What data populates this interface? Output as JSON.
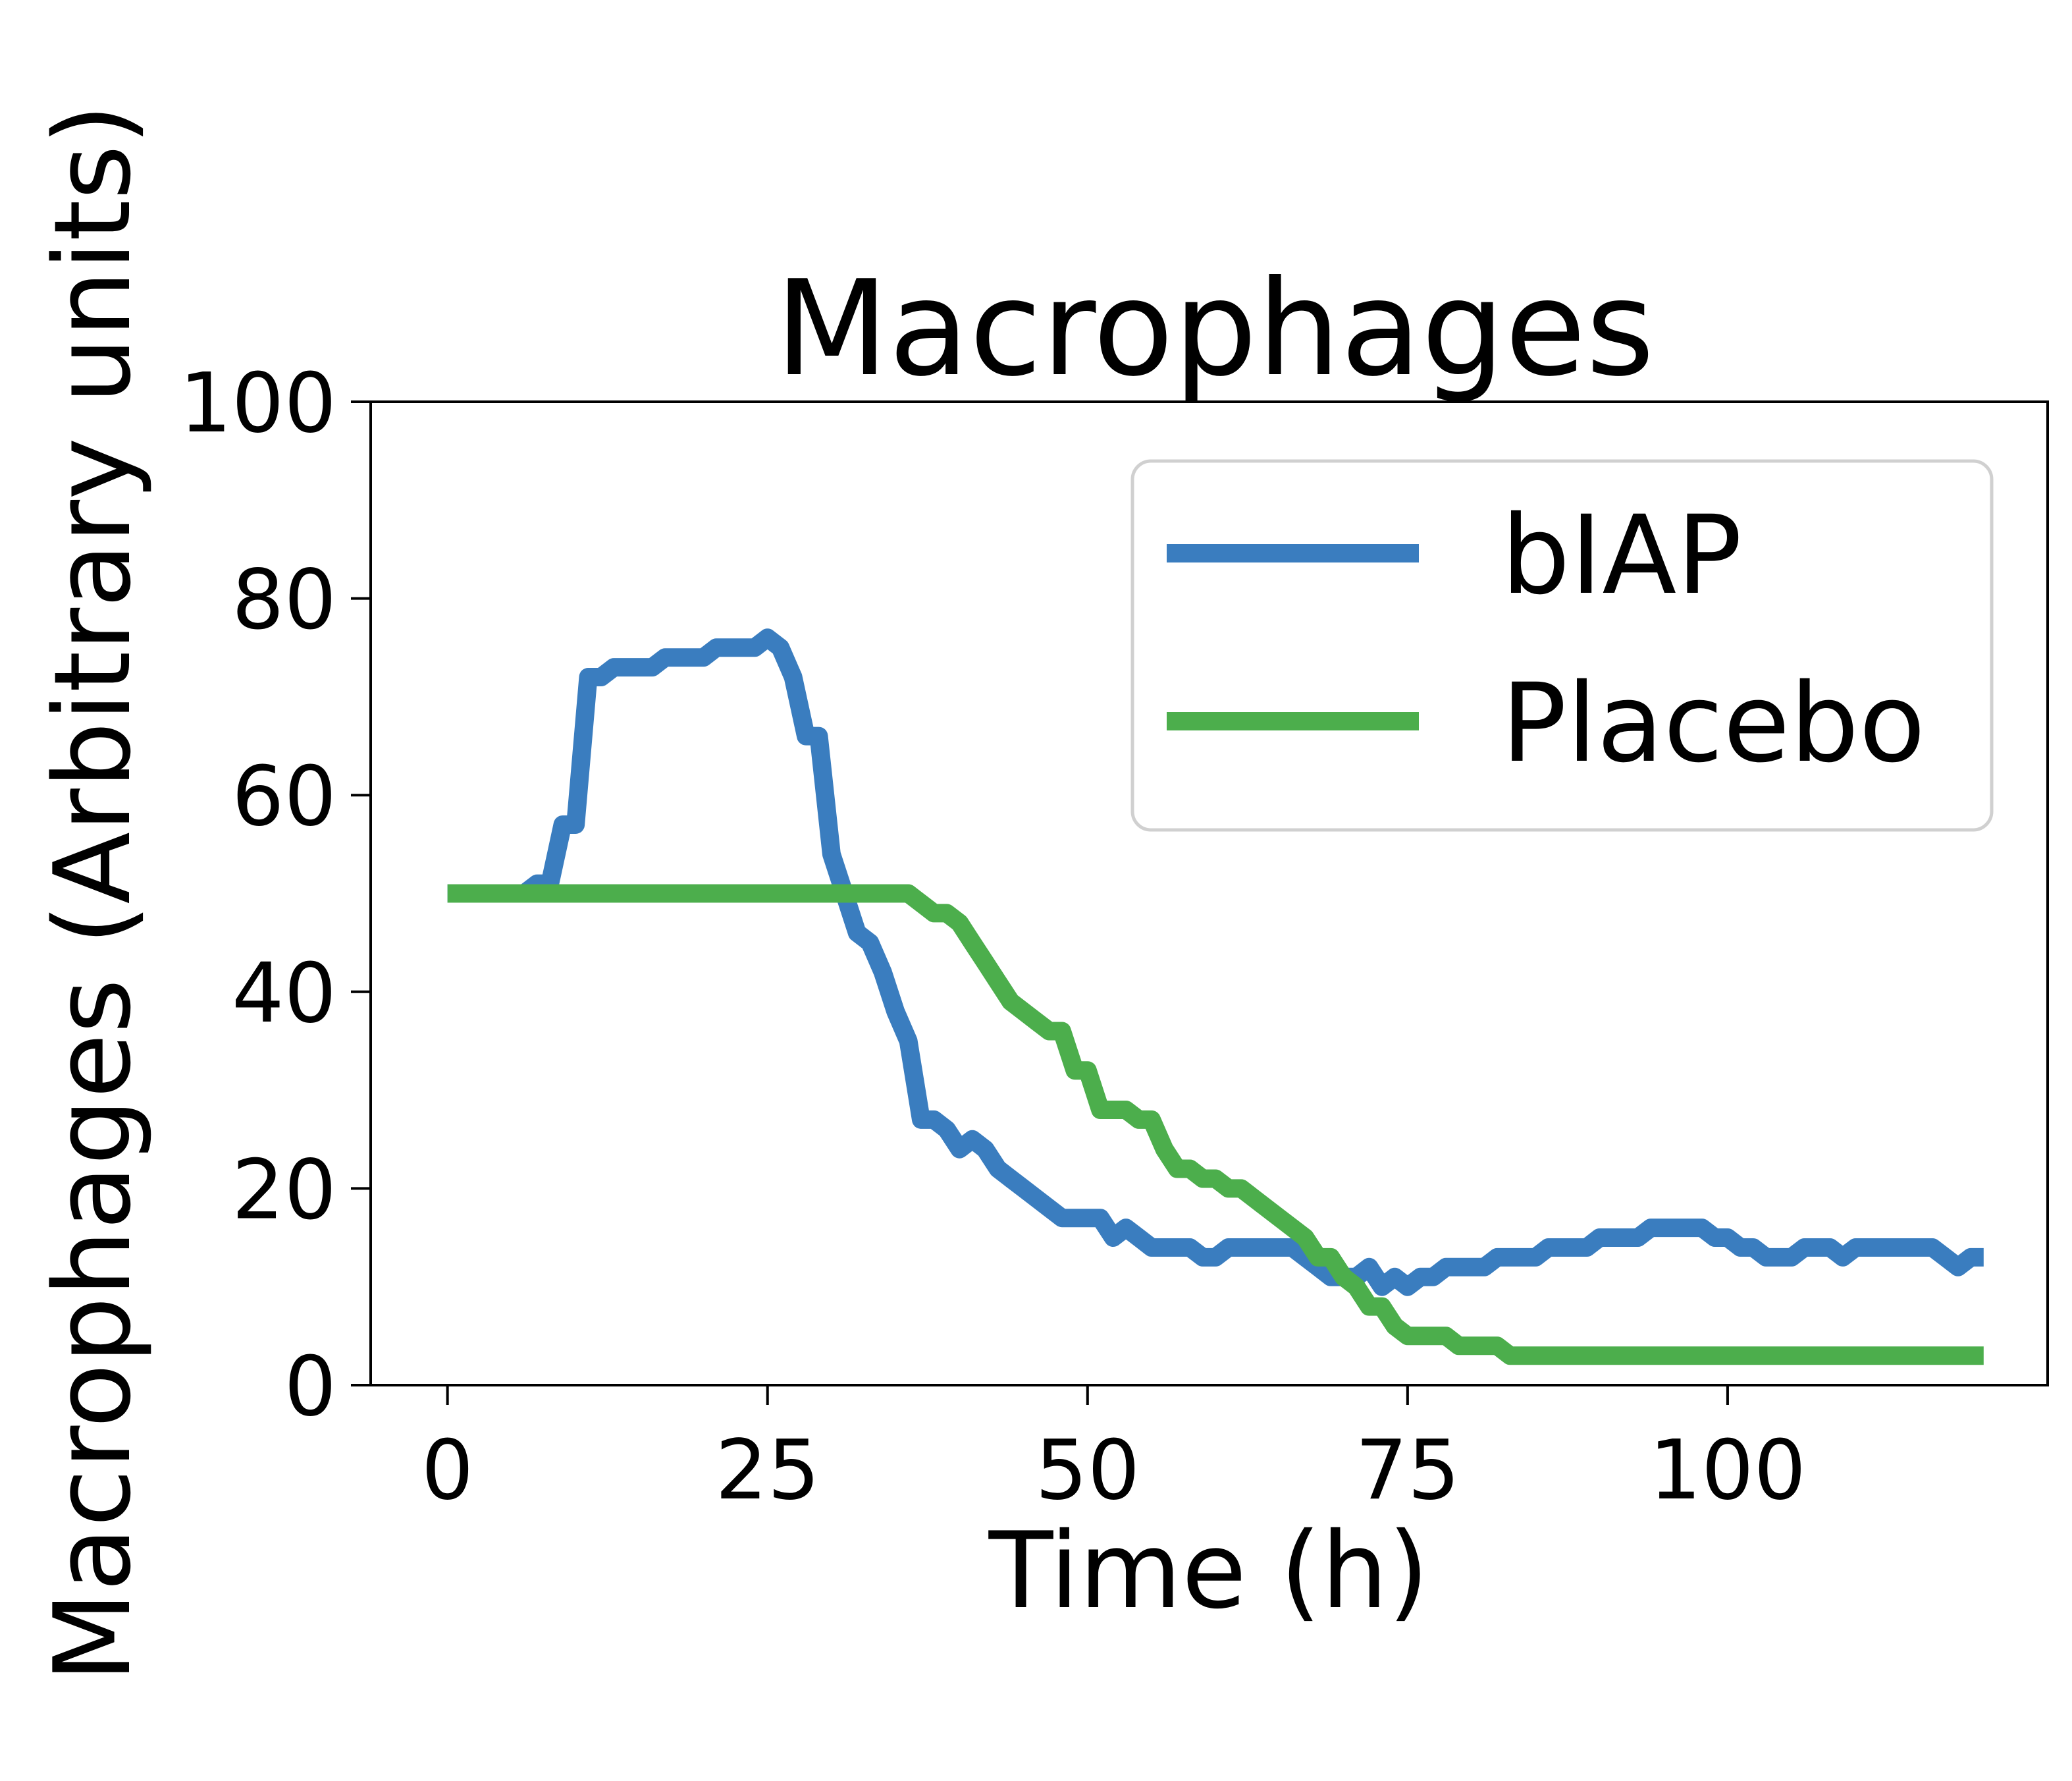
{
  "chart_data": {
    "type": "line",
    "title": "Macrophages",
    "xlabel": "Time (h)",
    "ylabel": "Macrophages (Arbitrary units)",
    "xlim": [
      -6,
      125
    ],
    "ylim": [
      0,
      100
    ],
    "xticks": [
      0,
      25,
      50,
      75,
      100
    ],
    "yticks": [
      0,
      20,
      40,
      60,
      80,
      100
    ],
    "grid": false,
    "legend_position": "top-right",
    "series": [
      {
        "name": "bIAP",
        "color": "#3a7dbf",
        "x": [
          0,
          6,
          7,
          8,
          9,
          10,
          11,
          12,
          13,
          14,
          15,
          16,
          17,
          18,
          19,
          20,
          21,
          22,
          23,
          24,
          25,
          26,
          27,
          28,
          29,
          30,
          31,
          32,
          33,
          34,
          35,
          36,
          37,
          38,
          39,
          40,
          41,
          42,
          43,
          44,
          45,
          46,
          47,
          48,
          49,
          50,
          51,
          52,
          53,
          54,
          55,
          56,
          57,
          58,
          59,
          60,
          61,
          62,
          63,
          64,
          65,
          66,
          67,
          68,
          69,
          70,
          71,
          72,
          73,
          74,
          75,
          76,
          77,
          78,
          79,
          80,
          81,
          82,
          83,
          84,
          85,
          86,
          87,
          88,
          89,
          90,
          91,
          92,
          93,
          94,
          95,
          96,
          97,
          98,
          99,
          100,
          101,
          102,
          103,
          104,
          105,
          106,
          107,
          108,
          109,
          110,
          111,
          112,
          113,
          114,
          115,
          116,
          117,
          118,
          119,
          120
        ],
        "y": [
          50,
          50,
          51,
          51,
          57,
          57,
          72,
          72,
          73,
          73,
          73,
          73,
          74,
          74,
          74,
          74,
          75,
          75,
          75,
          75,
          76,
          75,
          72,
          66,
          66,
          54,
          50,
          46,
          45,
          42,
          38,
          35,
          27,
          27,
          26,
          24,
          25,
          24,
          22,
          21,
          20,
          19,
          18,
          17,
          17,
          17,
          17,
          15,
          16,
          15,
          14,
          14,
          14,
          14,
          13,
          13,
          14,
          14,
          14,
          14,
          14,
          14,
          13,
          12,
          11,
          11,
          11,
          12,
          10,
          11,
          10,
          11,
          11,
          12,
          12,
          12,
          12,
          13,
          13,
          13,
          13,
          14,
          14,
          14,
          14,
          15,
          15,
          15,
          15,
          16,
          16,
          16,
          16,
          16,
          15,
          15,
          14,
          14,
          13,
          13,
          13,
          14,
          14,
          14,
          13,
          14,
          14,
          14,
          14,
          14,
          14,
          14,
          13,
          12,
          13,
          13
        ]
      },
      {
        "name": "Placebo",
        "color": "#4cae4c",
        "x": [
          0,
          36,
          37,
          38,
          39,
          40,
          41,
          42,
          43,
          44,
          45,
          46,
          47,
          48,
          49,
          50,
          51,
          52,
          53,
          54,
          55,
          56,
          57,
          58,
          59,
          60,
          61,
          62,
          63,
          64,
          65,
          66,
          67,
          68,
          69,
          70,
          71,
          72,
          73,
          74,
          75,
          76,
          77,
          78,
          79,
          80,
          81,
          82,
          83,
          84,
          85,
          86,
          120
        ],
        "y": [
          50,
          50,
          49,
          48,
          48,
          47,
          45,
          43,
          41,
          39,
          38,
          37,
          36,
          36,
          32,
          32,
          28,
          28,
          28,
          27,
          27,
          24,
          22,
          22,
          21,
          21,
          20,
          20,
          19,
          18,
          17,
          16,
          15,
          13,
          13,
          11,
          10,
          8,
          8,
          6,
          5,
          5,
          5,
          5,
          4,
          4,
          4,
          4,
          3,
          3,
          3,
          3,
          3
        ]
      }
    ]
  }
}
